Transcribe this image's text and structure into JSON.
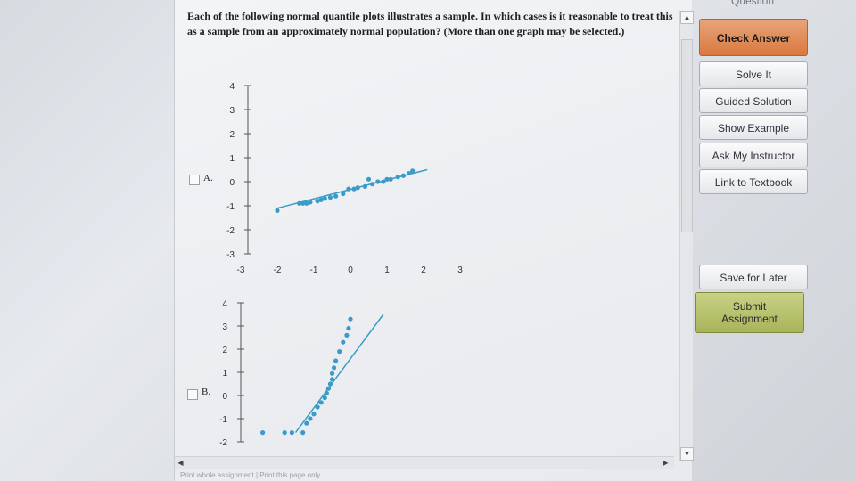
{
  "question_text": "Each of the following normal quantile plots illustrates a sample. In which cases is it reasonable to treat this as a sample from an approximately normal population? (More than one graph may be selected.)",
  "sidebar": {
    "question_label": "Question",
    "buttons": {
      "check_answer": "Check Answer",
      "solve_it": "Solve It",
      "guided_solution": "Guided Solution",
      "show_example": "Show Example",
      "ask_instructor": "Ask My Instructor",
      "link_textbook": "Link to Textbook",
      "save_later": "Save for Later",
      "submit_line1": "Submit",
      "submit_line2": "Assignment"
    }
  },
  "footer": {
    "print_whole": "Print whole assignment",
    "sep": " | ",
    "print_page": "Print this page only"
  },
  "options": [
    {
      "letter": "A."
    },
    {
      "letter": "B."
    }
  ],
  "chart_data": [
    {
      "type": "scatter",
      "option": "A",
      "y_ticks": [
        "4",
        "3",
        "2",
        "1",
        "0",
        "-1",
        "-2",
        "-3"
      ],
      "x_ticks": [
        "-3",
        "-2",
        "-1",
        "0",
        "1",
        "2",
        "3"
      ],
      "xlim": [
        -3,
        3
      ],
      "ylim": [
        -3,
        4
      ],
      "points": [
        [
          -2,
          -1.2
        ],
        [
          -1.4,
          -0.9
        ],
        [
          -1.3,
          -0.9
        ],
        [
          -1.2,
          -0.9
        ],
        [
          -1.1,
          -0.85
        ],
        [
          -0.9,
          -0.8
        ],
        [
          -0.8,
          -0.75
        ],
        [
          -0.7,
          -0.7
        ],
        [
          -0.55,
          -0.65
        ],
        [
          -0.4,
          -0.6
        ],
        [
          -0.2,
          -0.5
        ],
        [
          -0.05,
          -0.3
        ],
        [
          0.1,
          -0.3
        ],
        [
          0.2,
          -0.25
        ],
        [
          0.4,
          -0.2
        ],
        [
          0.5,
          0.1
        ],
        [
          0.6,
          -0.1
        ],
        [
          0.75,
          0.0
        ],
        [
          0.9,
          0.0
        ],
        [
          1.0,
          0.1
        ],
        [
          1.1,
          0.1
        ],
        [
          1.3,
          0.2
        ],
        [
          1.45,
          0.25
        ],
        [
          1.6,
          0.35
        ],
        [
          1.7,
          0.45
        ]
      ],
      "fit_line": [
        [
          -2,
          -1.1
        ],
        [
          2.1,
          0.5
        ]
      ],
      "color": "#3a9bc8"
    },
    {
      "type": "scatter",
      "option": "B",
      "y_ticks": [
        "4",
        "3",
        "2",
        "1",
        "0",
        "-1",
        "-2"
      ],
      "xlim": [
        -3,
        3
      ],
      "ylim": [
        -2,
        4
      ],
      "points": [
        [
          -2.4,
          -1.6
        ],
        [
          -1.8,
          -1.6
        ],
        [
          -1.6,
          -1.6
        ],
        [
          -1.3,
          -1.6
        ],
        [
          -1.2,
          -1.2
        ],
        [
          -1.1,
          -1.0
        ],
        [
          -1.0,
          -0.8
        ],
        [
          -0.9,
          -0.5
        ],
        [
          -0.8,
          -0.3
        ],
        [
          -0.7,
          -0.1
        ],
        [
          -0.65,
          0.1
        ],
        [
          -0.6,
          0.3
        ],
        [
          -0.55,
          0.5
        ],
        [
          -0.5,
          0.7
        ],
        [
          -0.5,
          0.95
        ],
        [
          -0.45,
          1.2
        ],
        [
          -0.4,
          1.5
        ],
        [
          -0.3,
          1.9
        ],
        [
          -0.2,
          2.3
        ],
        [
          -0.1,
          2.6
        ],
        [
          -0.05,
          2.9
        ],
        [
          0.0,
          3.3
        ]
      ],
      "fit_line": [
        [
          -1.5,
          -1.6
        ],
        [
          0.9,
          3.5
        ]
      ],
      "color": "#3a9bc8"
    }
  ]
}
